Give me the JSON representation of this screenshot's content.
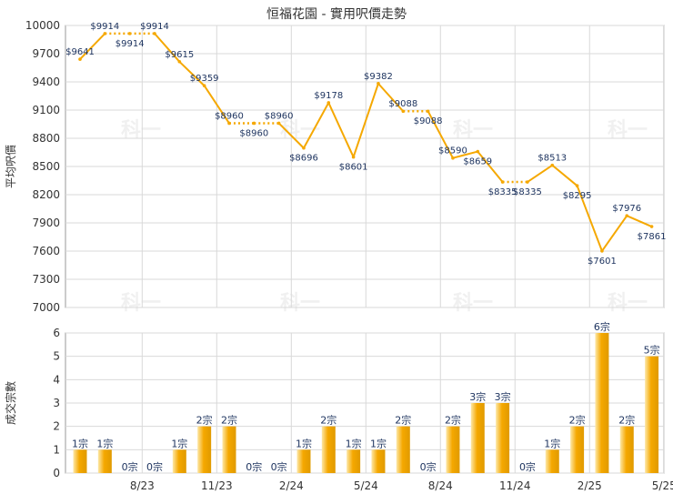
{
  "title": "恒福花園 - 實用呎價走勢",
  "watermark": "科一",
  "colors": {
    "line": "#f5a800",
    "bar_light": "#fde8a8",
    "bar_dark": "#e09a00",
    "grid": "#d9d9d9",
    "axis": "#999999",
    "text": "#333333",
    "label_text": "#1f3560"
  },
  "chart_data": [
    {
      "type": "line",
      "ylabel": "平均呎價",
      "ylim": [
        7000,
        10000
      ],
      "yticks": [
        "7000",
        "7300",
        "7600",
        "7900",
        "8200",
        "8500",
        "8800",
        "9100",
        "9400",
        "9700",
        "10000"
      ],
      "grid": true,
      "series": [
        {
          "x": [
            0,
            1,
            2,
            3,
            4,
            5,
            6,
            7,
            8,
            9,
            10,
            11,
            12,
            13,
            14,
            15,
            16,
            17,
            18,
            19,
            20,
            21,
            22,
            23,
            24
          ],
          "values": [
            9641,
            9914,
            9914,
            9914,
            9615,
            9359,
            8960,
            8960,
            8960,
            8696,
            9178,
            8601,
            9382,
            9088,
            9088,
            8590,
            8659,
            8335,
            8335,
            8513,
            8295,
            7601,
            7976,
            7861,
            null
          ],
          "labels": [
            "$9641",
            "$9914",
            "$9914",
            "$9914",
            "$9615",
            "$9359",
            "$8960",
            "$8960",
            "$8960",
            "$8696",
            "$9178",
            "$8601",
            "$9382",
            "$9088",
            "$9088",
            "$8590",
            "$8659",
            "$8335",
            "$8335",
            "$8513",
            "$8295",
            "$7601",
            "$7976",
            "$7861",
            ""
          ],
          "interpolated_segments": [
            [
              1,
              3
            ],
            [
              6,
              8
            ],
            [
              13,
              14
            ],
            [
              17,
              18
            ]
          ]
        }
      ]
    },
    {
      "type": "bar",
      "ylabel": "成交宗數",
      "ylim": [
        0,
        6
      ],
      "yticks": [
        "0",
        "1",
        "2",
        "3",
        "4",
        "5",
        "6"
      ],
      "grid": true,
      "values": [
        1,
        1,
        0,
        0,
        1,
        2,
        2,
        0,
        0,
        1,
        2,
        1,
        1,
        2,
        0,
        2,
        3,
        3,
        0,
        1,
        2,
        6,
        2,
        5
      ],
      "labels": [
        "1宗",
        "1宗",
        "0宗",
        "0宗",
        "1宗",
        "2宗",
        "2宗",
        "0宗",
        "0宗",
        "1宗",
        "2宗",
        "1宗",
        "1宗",
        "2宗",
        "0宗",
        "2宗",
        "3宗",
        "3宗",
        "0宗",
        "1宗",
        "2宗",
        "6宗",
        "2宗",
        "5宗"
      ],
      "x_ticks": [
        {
          "label": "8/23",
          "index": 2
        },
        {
          "label": "11/23",
          "index": 5
        },
        {
          "label": "2/24",
          "index": 8
        },
        {
          "label": "5/24",
          "index": 11
        },
        {
          "label": "8/24",
          "index": 14
        },
        {
          "label": "11/24",
          "index": 17
        },
        {
          "label": "2/25",
          "index": 20
        },
        {
          "label": "5/25",
          "index": 23
        }
      ]
    }
  ]
}
